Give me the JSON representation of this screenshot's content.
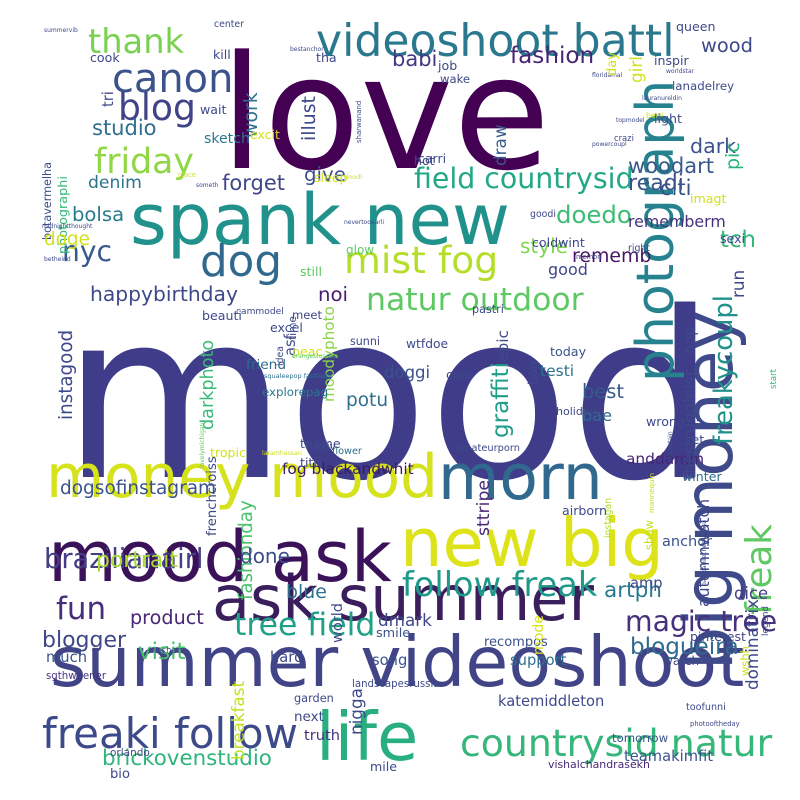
{
  "words": [
    {
      "text": "mood",
      "color": "#3f3d8a"
    },
    {
      "text": "love",
      "color": "#440154"
    },
    {
      "text": "summer videoshoot",
      "color": "#414487"
    },
    {
      "text": "spank new",
      "color": "#21918c"
    },
    {
      "text": "ask summer",
      "color": "#3b1f5c"
    },
    {
      "text": "mood ask",
      "color": "#3b1259"
    },
    {
      "text": "new big",
      "color": "#dde318"
    },
    {
      "text": "money mood",
      "color": "#d6e21b"
    },
    {
      "text": "morn",
      "color": "#31688e"
    },
    {
      "text": "big money",
      "color": "#3e4a89"
    },
    {
      "text": "photograph",
      "color": "#26828e"
    },
    {
      "text": "life",
      "color": "#29af7f"
    },
    {
      "text": "videoshoot battl",
      "color": "#2a788e"
    },
    {
      "text": "dog",
      "color": "#31688e"
    },
    {
      "text": "canon",
      "color": "#3b528b"
    },
    {
      "text": "blog",
      "color": "#404387"
    },
    {
      "text": "thank",
      "color": "#7ad151"
    },
    {
      "text": "freaki follow",
      "color": "#3d4a8a"
    },
    {
      "text": "countrysid natur",
      "color": "#35b779"
    },
    {
      "text": "mist fog",
      "color": "#b5de2b"
    },
    {
      "text": "friday",
      "color": "#8fd744"
    },
    {
      "text": "field countrysid",
      "color": "#22a884"
    },
    {
      "text": "natur outdoor",
      "color": "#5ec962"
    },
    {
      "text": "follow freak",
      "color": "#1f9a8a"
    },
    {
      "text": "magic tree",
      "color": "#46317e"
    },
    {
      "text": "tree field",
      "color": "#1fa187"
    },
    {
      "text": "freak",
      "color": "#5ec962"
    },
    {
      "text": "freakycoupl",
      "color": "#21918c"
    },
    {
      "text": "fun",
      "color": "#472d7b"
    },
    {
      "text": "readi",
      "color": "#3b528b"
    },
    {
      "text": "doedo",
      "color": "#3dbc74"
    },
    {
      "text": "nyc",
      "color": "#38598c"
    },
    {
      "text": "fog blackandwhit",
      "color": "#3d1a5c"
    },
    {
      "text": "brickovenstudio",
      "color": "#2fb47c"
    },
    {
      "text": "brazilianairl",
      "color": "#433e85"
    },
    {
      "text": "rememberm",
      "color": "#46307e"
    },
    {
      "text": "portrait",
      "color": "#a8db34"
    },
    {
      "text": "product",
      "color": "#482576"
    },
    {
      "text": "fashionday",
      "color": "#4ac16d"
    },
    {
      "text": "blogueira",
      "color": "#306a8e"
    },
    {
      "text": "happybirthday",
      "color": "#3e4989"
    },
    {
      "text": "dogsofinstagram",
      "color": "#3b528b"
    },
    {
      "text": "instagood",
      "color": "#3e4989"
    },
    {
      "text": "darkphoto",
      "color": "#3aba76"
    },
    {
      "text": "moodyphoto",
      "color": "#89d548"
    },
    {
      "text": "graffiti",
      "color": "#1f9e89"
    },
    {
      "text": "style",
      "color": "#7fd34e"
    },
    {
      "text": "testi",
      "color": "#2c728e"
    },
    {
      "text": "potu",
      "color": "#2e6f8e"
    },
    {
      "text": "best",
      "color": "#38598c"
    },
    {
      "text": "anddamm",
      "color": "#482576"
    },
    {
      "text": "bae",
      "color": "#306a8e"
    },
    {
      "text": "artph",
      "color": "#2a788e"
    },
    {
      "text": "recompos",
      "color": "#3b528b"
    },
    {
      "text": "dice",
      "color": "#433e85"
    },
    {
      "text": "blogger",
      "color": "#3f4788"
    },
    {
      "text": "visit",
      "color": "#48c16e"
    },
    {
      "text": "done",
      "color": "#3d4d8a"
    },
    {
      "text": "fashion",
      "color": "#482475"
    },
    {
      "text": "photographi",
      "color": "#35b779"
    },
    {
      "text": "botavermelha",
      "color": "#3d4d8a"
    },
    {
      "text": "woodart",
      "color": "#38598c"
    },
    {
      "text": "dark",
      "color": "#3b528b"
    },
    {
      "text": "studio",
      "color": "#2e6e8e"
    },
    {
      "text": "denim",
      "color": "#2c738e"
    },
    {
      "text": "forget",
      "color": "#404688"
    },
    {
      "text": "bolsa",
      "color": "#297b8e"
    },
    {
      "text": "give",
      "color": "#3c4f8a"
    },
    {
      "text": "noi",
      "color": "#481c6e"
    },
    {
      "text": "doggi",
      "color": "#3b528b"
    },
    {
      "text": "friend",
      "color": "#306a8e"
    },
    {
      "text": "babi",
      "color": "#453882"
    },
    {
      "text": "citi",
      "color": "#3b528b"
    },
    {
      "text": "wood",
      "color": "#3e4989"
    },
    {
      "text": "pic",
      "color": "#2db27d"
    },
    {
      "text": "work",
      "color": "#2e6e8e"
    },
    {
      "text": "illust",
      "color": "#3e4a89"
    },
    {
      "text": "sketch",
      "color": "#2a788e"
    },
    {
      "text": "rememb",
      "color": "#481467"
    },
    {
      "text": "draw",
      "color": "#38598c"
    },
    {
      "text": "tch",
      "color": "#35b779"
    },
    {
      "text": "doge",
      "color": "#d2e21b"
    },
    {
      "text": "good",
      "color": "#3f4788"
    },
    {
      "text": "sttripe",
      "color": "#482576"
    },
    {
      "text": "blue",
      "color": "#2c728e"
    },
    {
      "text": "dmark",
      "color": "#3f4788"
    },
    {
      "text": "squaleepop fastfashi",
      "color": "#2e6e8e"
    },
    {
      "text": "explorepag",
      "color": "#2a778e"
    },
    {
      "text": "support",
      "color": "#2e6f8e"
    },
    {
      "text": "katemiddleton",
      "color": "#3e4989"
    },
    {
      "text": "vishalchandrasekh",
      "color": "#482878"
    },
    {
      "text": "teamakimfit",
      "color": "#3b528b"
    },
    {
      "text": "photooftheday",
      "color": "#3f4788"
    },
    {
      "text": "toofunni",
      "color": "#3e4a89"
    },
    {
      "text": "much",
      "color": "#3b528b"
    },
    {
      "text": "sgthweener",
      "color": "#46337f"
    },
    {
      "text": "machan",
      "color": "#3e4989"
    },
    {
      "text": "hard",
      "color": "#3e4989"
    },
    {
      "text": "smile",
      "color": "#3b528b"
    },
    {
      "text": "song",
      "color": "#3b528b"
    },
    {
      "text": "watch",
      "color": "#3f4788"
    },
    {
      "text": "pinterest",
      "color": "#404588"
    },
    {
      "text": "amp",
      "color": "#3e4989"
    },
    {
      "text": "anchor",
      "color": "#3b528b"
    },
    {
      "text": "world",
      "color": "#3e4989"
    },
    {
      "text": "garden",
      "color": "#3e4989"
    },
    {
      "text": "next",
      "color": "#3f4788"
    },
    {
      "text": "truth",
      "color": "#46307e"
    },
    {
      "text": "orlando",
      "color": "#3e4989"
    },
    {
      "text": "bio",
      "color": "#3f4788"
    },
    {
      "text": "mile",
      "color": "#3e4989"
    },
    {
      "text": "tomorrow",
      "color": "#3b528b"
    },
    {
      "text": "legend",
      "color": "#3e4989"
    },
    {
      "text": "wshh",
      "color": "#c8e020"
    },
    {
      "text": "mode",
      "color": "#d8e219"
    },
    {
      "text": "nigga",
      "color": "#3e4989"
    },
    {
      "text": "landscapesrussia",
      "color": "#3e4989"
    },
    {
      "text": "breakfast",
      "color": "#c5e021"
    },
    {
      "text": "laramhassan",
      "color": "#d0e11c"
    },
    {
      "text": "theme",
      "color": "#3e4989"
    },
    {
      "text": "flower",
      "color": "#2e6e8e"
    },
    {
      "text": "titti",
      "color": "#3f4788"
    },
    {
      "text": "tropic",
      "color": "#d0e11c"
    },
    {
      "text": "frenchcroiss",
      "color": "#3e4989"
    },
    {
      "text": "lovelymichigan",
      "color": "#5ec962"
    },
    {
      "text": "instagan",
      "color": "#b5de2b"
    },
    {
      "text": "airborn",
      "color": "#3e4989"
    },
    {
      "text": "autumnwatch",
      "color": "#3e4989"
    },
    {
      "text": "dominatrix",
      "color": "#3e4989"
    },
    {
      "text": "show",
      "color": "#c2df23"
    },
    {
      "text": "padipadilechemanasu",
      "color": "#3e4989"
    },
    {
      "text": "mannequin",
      "color": "#c5e021"
    },
    {
      "text": "winter",
      "color": "#2e6e8e"
    },
    {
      "text": "mountain",
      "color": "#3e4989"
    },
    {
      "text": "vet",
      "color": "#3e4989"
    },
    {
      "text": "wrong",
      "color": "#3e4989"
    },
    {
      "text": "holiday",
      "color": "#3e4989"
    },
    {
      "text": "start",
      "color": "#3aba76"
    },
    {
      "text": "thestruggleisr",
      "color": "#3e4989"
    },
    {
      "text": "today",
      "color": "#3b528b"
    },
    {
      "text": "amateurporn",
      "color": "#3e4989"
    },
    {
      "text": "motiv",
      "color": "#3e4989"
    },
    {
      "text": "bag",
      "color": "#3e4989"
    },
    {
      "text": "wtfdoe",
      "color": "#3e4989"
    },
    {
      "text": "sunni",
      "color": "#3e4989"
    },
    {
      "text": "cure",
      "color": "#3e4989"
    },
    {
      "text": "pastri",
      "color": "#3e4989"
    },
    {
      "text": "epic",
      "color": "#3e4989"
    },
    {
      "text": "meet",
      "color": "#3e4989"
    },
    {
      "text": "asf",
      "color": "#3e4989"
    },
    {
      "text": "time",
      "color": "#3e4989"
    },
    {
      "text": "cammodel",
      "color": "#3e4989"
    },
    {
      "text": "excel",
      "color": "#3e4989"
    },
    {
      "text": "beauti",
      "color": "#3e4989"
    },
    {
      "text": "peac",
      "color": "#d0e11c"
    },
    {
      "text": "orangeblossom",
      "color": "#5ec962"
    },
    {
      "text": "idea",
      "color": "#3e4989"
    },
    {
      "text": "bop",
      "color": "#3e4989"
    },
    {
      "text": "run",
      "color": "#3e4989"
    },
    {
      "text": "right",
      "color": "#3e4989"
    },
    {
      "text": "memori",
      "color": "#3e4989"
    },
    {
      "text": "sexi",
      "color": "#3e4989"
    },
    {
      "text": "coldwint",
      "color": "#3e4989"
    },
    {
      "text": "goodi",
      "color": "#3e4989"
    },
    {
      "text": "imagt",
      "color": "#d0e11c"
    },
    {
      "text": "sleep",
      "color": "#d0e11c"
    },
    {
      "text": "doodl",
      "color": "#d0e11c"
    },
    {
      "text": "nevertooearli",
      "color": "#3e4989"
    },
    {
      "text": "glow",
      "color": "#5ec962"
    },
    {
      "text": "still",
      "color": "#5ec962"
    },
    {
      "text": "hot",
      "color": "#3e4989"
    },
    {
      "text": "carri",
      "color": "#3e4989"
    },
    {
      "text": "powercoupl",
      "color": "#3e4989"
    },
    {
      "text": "topmodel",
      "color": "#3e4989"
    },
    {
      "text": "crazi",
      "color": "#3e4989"
    },
    {
      "text": "berri",
      "color": "#d0e11c"
    },
    {
      "text": "lauranureldin",
      "color": "#3e4989"
    },
    {
      "text": "light",
      "color": "#3e4989"
    },
    {
      "text": "lanadelrey",
      "color": "#3e4989"
    },
    {
      "text": "worldstar",
      "color": "#3e4989"
    },
    {
      "text": "floridamal",
      "color": "#3e4989"
    },
    {
      "text": "girl",
      "color": "#d0e11c"
    },
    {
      "text": "inspir",
      "color": "#3e4989"
    },
    {
      "text": "wake",
      "color": "#3e4989"
    },
    {
      "text": "job",
      "color": "#3e4989"
    },
    {
      "text": "tha",
      "color": "#3e4989"
    },
    {
      "text": "queen",
      "color": "#3e4989"
    },
    {
      "text": "day",
      "color": "#d0e11c"
    },
    {
      "text": "sharwanand",
      "color": "#3e4989"
    },
    {
      "text": "excit",
      "color": "#d0e11c"
    },
    {
      "text": "someth",
      "color": "#3e4989"
    },
    {
      "text": "place",
      "color": "#d0e11c"
    },
    {
      "text": "wait",
      "color": "#3e4989"
    },
    {
      "text": "tri",
      "color": "#3e4989"
    },
    {
      "text": "cook",
      "color": "#3e4989"
    },
    {
      "text": "summervib",
      "color": "#3e4989"
    },
    {
      "text": "center",
      "color": "#3e4989"
    },
    {
      "text": "kill",
      "color": "#3e4989"
    },
    {
      "text": "bestanchor",
      "color": "#3e4989"
    },
    {
      "text": "midnightthought",
      "color": "#3e4989"
    },
    {
      "text": "betheind",
      "color": "#3e4989"
    }
  ]
}
